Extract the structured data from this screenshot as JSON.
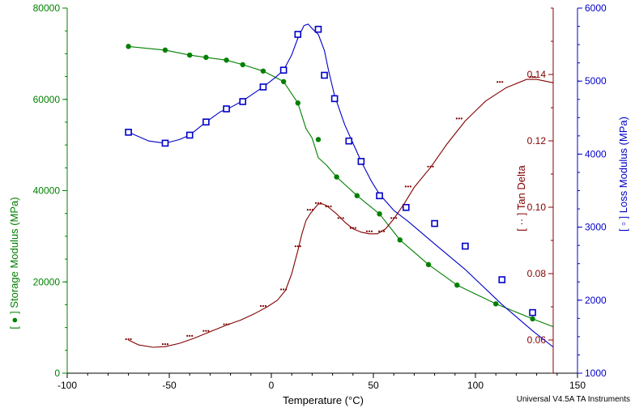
{
  "chart_data": {
    "type": "line",
    "xlabel": "Temperature (°C)",
    "credit": "Universal V4.5A TA Instruments",
    "x_ticks": [
      -100,
      -50,
      0,
      50,
      100,
      150
    ],
    "xlim": [
      -100,
      150
    ],
    "grid": false,
    "axes": {
      "left": {
        "label": "[ ● ] Storage Modulus (MPa)",
        "color": "#008000",
        "ylim": [
          0,
          80000
        ],
        "ticks": [
          0,
          20000,
          40000,
          60000,
          80000
        ]
      },
      "right_inner": {
        "label": "[ ·· ] Tan Delta",
        "color": "#800000",
        "ylim": [
          0.05,
          0.16
        ],
        "ticks": [
          0.06,
          0.08,
          0.1,
          0.12,
          0.14
        ]
      },
      "right_outer": {
        "label": "[ ▫ ] Loss Modulus (MPa)",
        "color": "#0000c8",
        "ylim": [
          1000,
          6000
        ],
        "ticks": [
          1000,
          2000,
          3000,
          4000,
          5000,
          6000
        ]
      }
    },
    "series": [
      {
        "name": "Storage Modulus",
        "axis": "left",
        "color": "#008000",
        "marker": "dot",
        "x": [
          -70,
          -52,
          -40,
          -32,
          -22,
          -14,
          -4,
          6,
          13,
          17,
          20,
          23,
          27,
          32,
          42,
          53,
          63,
          77,
          91,
          110,
          128,
          138
        ],
        "y": [
          71600,
          70800,
          69700,
          69200,
          68600,
          67600,
          66200,
          63900,
          59200,
          53600,
          51500,
          47200,
          45600,
          43000,
          38900,
          34900,
          29200,
          23800,
          19300,
          15200,
          11900,
          10200
        ],
        "markers_x": [
          -70,
          -52,
          -40,
          -32,
          -22,
          -14,
          -4,
          6,
          13,
          23,
          32,
          42,
          53,
          63,
          77,
          91,
          110,
          128
        ],
        "markers_y": [
          71600,
          70800,
          69700,
          69200,
          68600,
          67600,
          66200,
          63900,
          59200,
          51200,
          43000,
          38900,
          34900,
          29200,
          23800,
          19300,
          15200,
          11900
        ]
      },
      {
        "name": "Loss Modulus",
        "axis": "right_outer",
        "color": "#0000c8",
        "marker": "square",
        "x": [
          -70,
          -60,
          -52,
          -45,
          -40,
          -32,
          -25,
          -20,
          -14,
          -4,
          2,
          6,
          10,
          13,
          16,
          18,
          20,
          23,
          26,
          28,
          31,
          36,
          40,
          44,
          49,
          53,
          60,
          67,
          80,
          95,
          113,
          128,
          138
        ],
        "y": [
          4300,
          4180,
          4150,
          4200,
          4260,
          4440,
          4580,
          4640,
          4730,
          4920,
          5050,
          5150,
          5360,
          5590,
          5760,
          5780,
          5720,
          5640,
          5420,
          5150,
          4800,
          4400,
          4150,
          3900,
          3630,
          3450,
          3230,
          3080,
          2770,
          2420,
          1940,
          1580,
          1360
        ],
        "markers_x": [
          -70,
          -52,
          -40,
          -32,
          -22,
          -14,
          -4,
          6,
          13,
          23,
          26,
          31,
          38,
          44,
          53,
          66,
          80,
          95,
          113,
          128
        ],
        "markers_y": [
          4300,
          4150,
          4260,
          4440,
          4620,
          4720,
          4920,
          5150,
          5640,
          5710,
          5080,
          4760,
          4180,
          3900,
          3430,
          3270,
          3050,
          2740,
          2280,
          1830
        ]
      },
      {
        "name": "Tan Delta",
        "axis": "right_inner",
        "color": "#800000",
        "marker": "dots",
        "x": [
          -70,
          -65,
          -58,
          -52,
          -45,
          -38,
          -30,
          -22,
          -15,
          -8,
          -2,
          3,
          7,
          10,
          13,
          15,
          17,
          19,
          21,
          23,
          25,
          27,
          29,
          32,
          36,
          40,
          44,
          48,
          52,
          56,
          60,
          65,
          70,
          78,
          86,
          95,
          105,
          115,
          125,
          130,
          138
        ],
        "y": [
          0.06,
          0.0585,
          0.0578,
          0.058,
          0.059,
          0.0605,
          0.0625,
          0.0645,
          0.066,
          0.068,
          0.07,
          0.072,
          0.075,
          0.08,
          0.087,
          0.092,
          0.096,
          0.098,
          0.0995,
          0.101,
          0.101,
          0.1005,
          0.0995,
          0.098,
          0.0955,
          0.0935,
          0.0925,
          0.092,
          0.092,
          0.0935,
          0.0965,
          0.101,
          0.106,
          0.112,
          0.119,
          0.126,
          0.132,
          0.136,
          0.1385,
          0.1385,
          0.1375
        ],
        "markers_x": [
          -70,
          -52,
          -40,
          -32,
          -22,
          -4,
          6,
          13,
          19,
          23,
          28,
          34,
          40,
          48,
          54,
          60,
          67,
          78,
          92,
          112,
          128
        ],
        "markers_y": [
          0.06,
          0.0585,
          0.061,
          0.0625,
          0.0645,
          0.07,
          0.075,
          0.088,
          0.099,
          0.101,
          0.1,
          0.0965,
          0.0935,
          0.0925,
          0.0925,
          0.0965,
          0.106,
          0.112,
          0.1265,
          0.1375,
          0.139
        ]
      }
    ]
  }
}
